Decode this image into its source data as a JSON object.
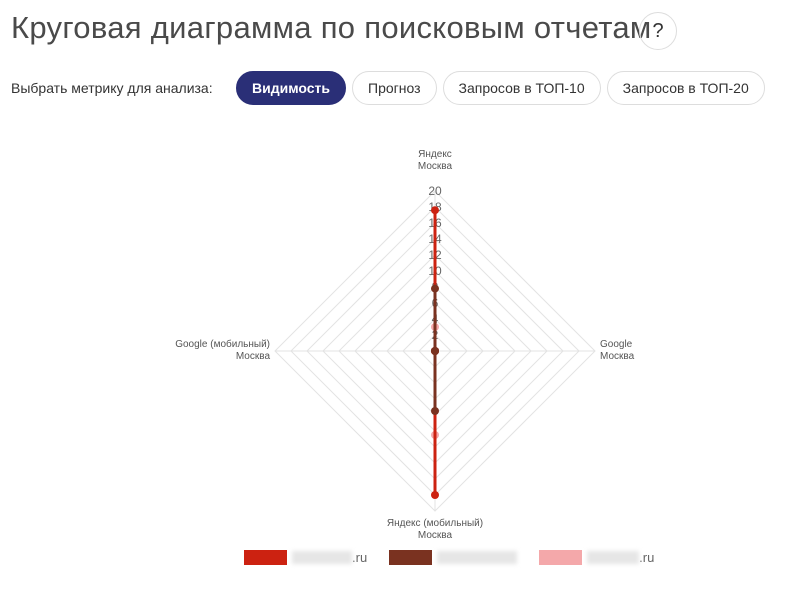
{
  "header": {
    "title": "Круговая диаграмма по поисковым отчетам",
    "help_label": "?"
  },
  "metric": {
    "label": "Выбрать метрику для анализа:",
    "buttons": [
      {
        "label": "Видимость",
        "active": true
      },
      {
        "label": "Прогноз",
        "active": false
      },
      {
        "label": "Запросов в ТОП-10",
        "active": false
      },
      {
        "label": "Запросов в ТОП-20",
        "active": false
      }
    ]
  },
  "chart_data": {
    "type": "radar",
    "axes": [
      {
        "line1": "Яндекс",
        "line2": "Москва"
      },
      {
        "line1": "Google",
        "line2": "Москва"
      },
      {
        "line1": "Яндекс (мобильный)",
        "line2": "Москва"
      },
      {
        "line1": "Google (мобильный)",
        "line2": "Москва"
      }
    ],
    "range": [
      0,
      20
    ],
    "ticks": [
      "2",
      "4",
      "6",
      "8",
      "10",
      "12",
      "14",
      "16",
      "18",
      "20"
    ],
    "grid": true,
    "legend_position": "bottom",
    "series": [
      {
        "suffix": ".ru",
        "color": "#cc2211",
        "values": [
          17.6,
          0,
          18,
          0
        ]
      },
      {
        "suffix": "",
        "color": "#7a3220",
        "values": [
          7.8,
          0,
          7.5,
          0
        ]
      },
      {
        "suffix": ".ru",
        "color": "#f4a8aa",
        "values": [
          3,
          0,
          10.5,
          0
        ]
      }
    ]
  }
}
